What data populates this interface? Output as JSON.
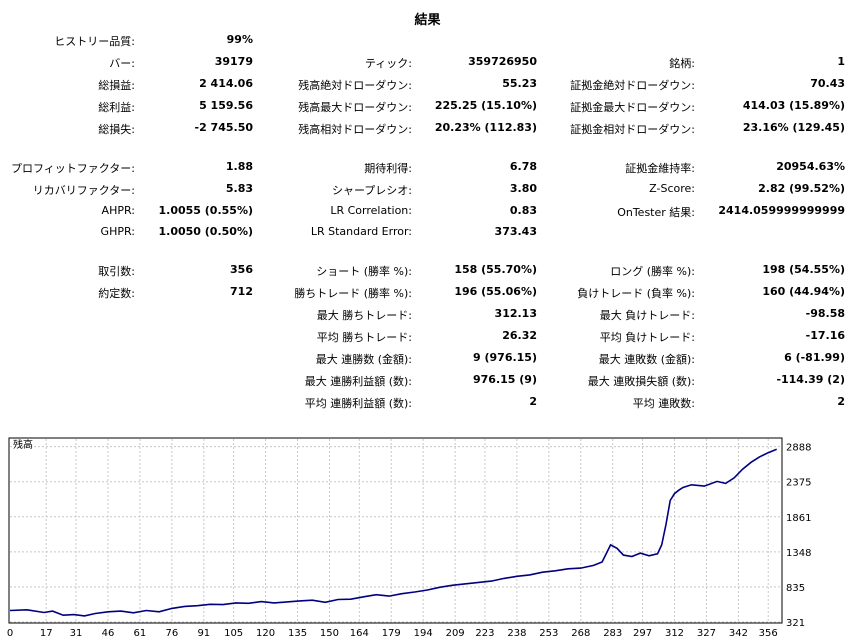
{
  "title": "結果",
  "rows": [
    {
      "y": 40,
      "c1": [
        "ヒストリー品質:",
        "99%"
      ],
      "c2": null,
      "c3": null
    },
    {
      "y": 62,
      "c1": [
        "バー:",
        "39179"
      ],
      "c2": [
        "ティック:",
        "359726950"
      ],
      "c3": [
        "銘柄:",
        "1"
      ]
    },
    {
      "y": 84,
      "c1": [
        "総損益:",
        "2 414.06"
      ],
      "c2": [
        "残高絶対ドローダウン:",
        "55.23"
      ],
      "c3": [
        "証拠金絶対ドローダウン:",
        "70.43"
      ]
    },
    {
      "y": 106,
      "c1": [
        "総利益:",
        "5 159.56"
      ],
      "c2": [
        "残高最大ドローダウン:",
        "225.25 (15.10%)"
      ],
      "c3": [
        "証拠金最大ドローダウン:",
        "414.03 (15.89%)"
      ]
    },
    {
      "y": 128,
      "c1": [
        "総損失:",
        "-2 745.50"
      ],
      "c2": [
        "残高相対ドローダウン:",
        "20.23% (112.83)"
      ],
      "c3": [
        "証拠金相対ドローダウン:",
        "23.16% (129.45)"
      ]
    },
    {
      "y": 167,
      "c1": [
        "プロフィットファクター:",
        "1.88"
      ],
      "c2": [
        "期待利得:",
        "6.78"
      ],
      "c3": [
        "証拠金維持率:",
        "20954.63%"
      ]
    },
    {
      "y": 189,
      "c1": [
        "リカバリファクター:",
        "5.83"
      ],
      "c2": [
        "シャープレシオ:",
        "3.80"
      ],
      "c3": [
        "Z-Score:",
        "2.82 (99.52%)"
      ]
    },
    {
      "y": 211,
      "c1": [
        "AHPR:",
        "1.0055 (0.55%)"
      ],
      "c2": [
        "LR Correlation:",
        "0.83"
      ],
      "c3": [
        "OnTester 結果:",
        "2414.059999999999"
      ]
    },
    {
      "y": 232,
      "c1": [
        "GHPR:",
        "1.0050 (0.50%)"
      ],
      "c2": [
        "LR Standard Error:",
        "373.43"
      ],
      "c3": null
    },
    {
      "y": 270,
      "c1": [
        "取引数:",
        "356"
      ],
      "c2": [
        "ショート (勝率 %):",
        "158 (55.70%)"
      ],
      "c3": [
        "ロング (勝率 %):",
        "198 (54.55%)"
      ]
    },
    {
      "y": 292,
      "c1": [
        "約定数:",
        "712"
      ],
      "c2": [
        "勝ちトレード (勝率 %):",
        "196 (55.06%)"
      ],
      "c3": [
        "負けトレード (負率 %):",
        "160 (44.94%)"
      ]
    },
    {
      "y": 314,
      "c1": null,
      "c2": [
        "最大 勝ちトレード:",
        "312.13"
      ],
      "c3": [
        "最大 負けトレード:",
        "-98.58"
      ]
    },
    {
      "y": 336,
      "c1": null,
      "c2": [
        "平均 勝ちトレード:",
        "26.32"
      ],
      "c3": [
        "平均 負けトレード:",
        "-17.16"
      ]
    },
    {
      "y": 358,
      "c1": null,
      "c2": [
        "最大 連勝数 (金額):",
        "9 (976.15)"
      ],
      "c3": [
        "最大 連敗数 (金額):",
        "6 (-81.99)"
      ]
    },
    {
      "y": 380,
      "c1": null,
      "c2": [
        "最大 連勝利益額 (数):",
        "976.15 (9)"
      ],
      "c3": [
        "最大 連敗損失額 (数):",
        "-114.39 (2)"
      ]
    },
    {
      "y": 402,
      "c1": null,
      "c2": [
        "平均 連勝利益額 (数):",
        "2"
      ],
      "c3": [
        "平均 連敗数:",
        "2"
      ]
    }
  ],
  "chart_data": {
    "type": "line",
    "title": "残高",
    "line_color": "#000080",
    "grid": true,
    "xlim": [
      0,
      362
    ],
    "ylim": [
      321,
      3000
    ],
    "y_ticks": [
      2888,
      2375,
      1861,
      1348,
      835,
      321
    ],
    "x_ticks": [
      0,
      17,
      31,
      46,
      61,
      76,
      91,
      105,
      120,
      135,
      150,
      164,
      179,
      194,
      209,
      223,
      238,
      253,
      268,
      283,
      297,
      312,
      327,
      342,
      356
    ],
    "series": [
      {
        "x": [
          0,
          8,
          16,
          20,
          25,
          30,
          35,
          40,
          46,
          52,
          58,
          64,
          70,
          76,
          82,
          88,
          94,
          100,
          106,
          112,
          118,
          124,
          130,
          136,
          142,
          148,
          154,
          160,
          166,
          172,
          178,
          184,
          190,
          196,
          202,
          208,
          214,
          220,
          226,
          232,
          238,
          244,
          250,
          256,
          262,
          268,
          274,
          278,
          282,
          285,
          288,
          292,
          296,
          300,
          304,
          306,
          308,
          310,
          312,
          314,
          316,
          320,
          326,
          332,
          336,
          340,
          344,
          348,
          352,
          356,
          360
        ],
        "y": [
          490,
          500,
          460,
          480,
          420,
          430,
          410,
          445,
          470,
          480,
          455,
          490,
          470,
          520,
          550,
          560,
          580,
          575,
          600,
          595,
          620,
          600,
          615,
          630,
          640,
          610,
          650,
          655,
          690,
          720,
          700,
          735,
          760,
          790,
          830,
          860,
          880,
          900,
          920,
          960,
          990,
          1010,
          1050,
          1070,
          1100,
          1110,
          1150,
          1200,
          1450,
          1400,
          1300,
          1280,
          1330,
          1290,
          1320,
          1450,
          1750,
          2100,
          2200,
          2250,
          2290,
          2330,
          2310,
          2380,
          2350,
          2430,
          2560,
          2660,
          2740,
          2800,
          2850
        ]
      }
    ]
  }
}
